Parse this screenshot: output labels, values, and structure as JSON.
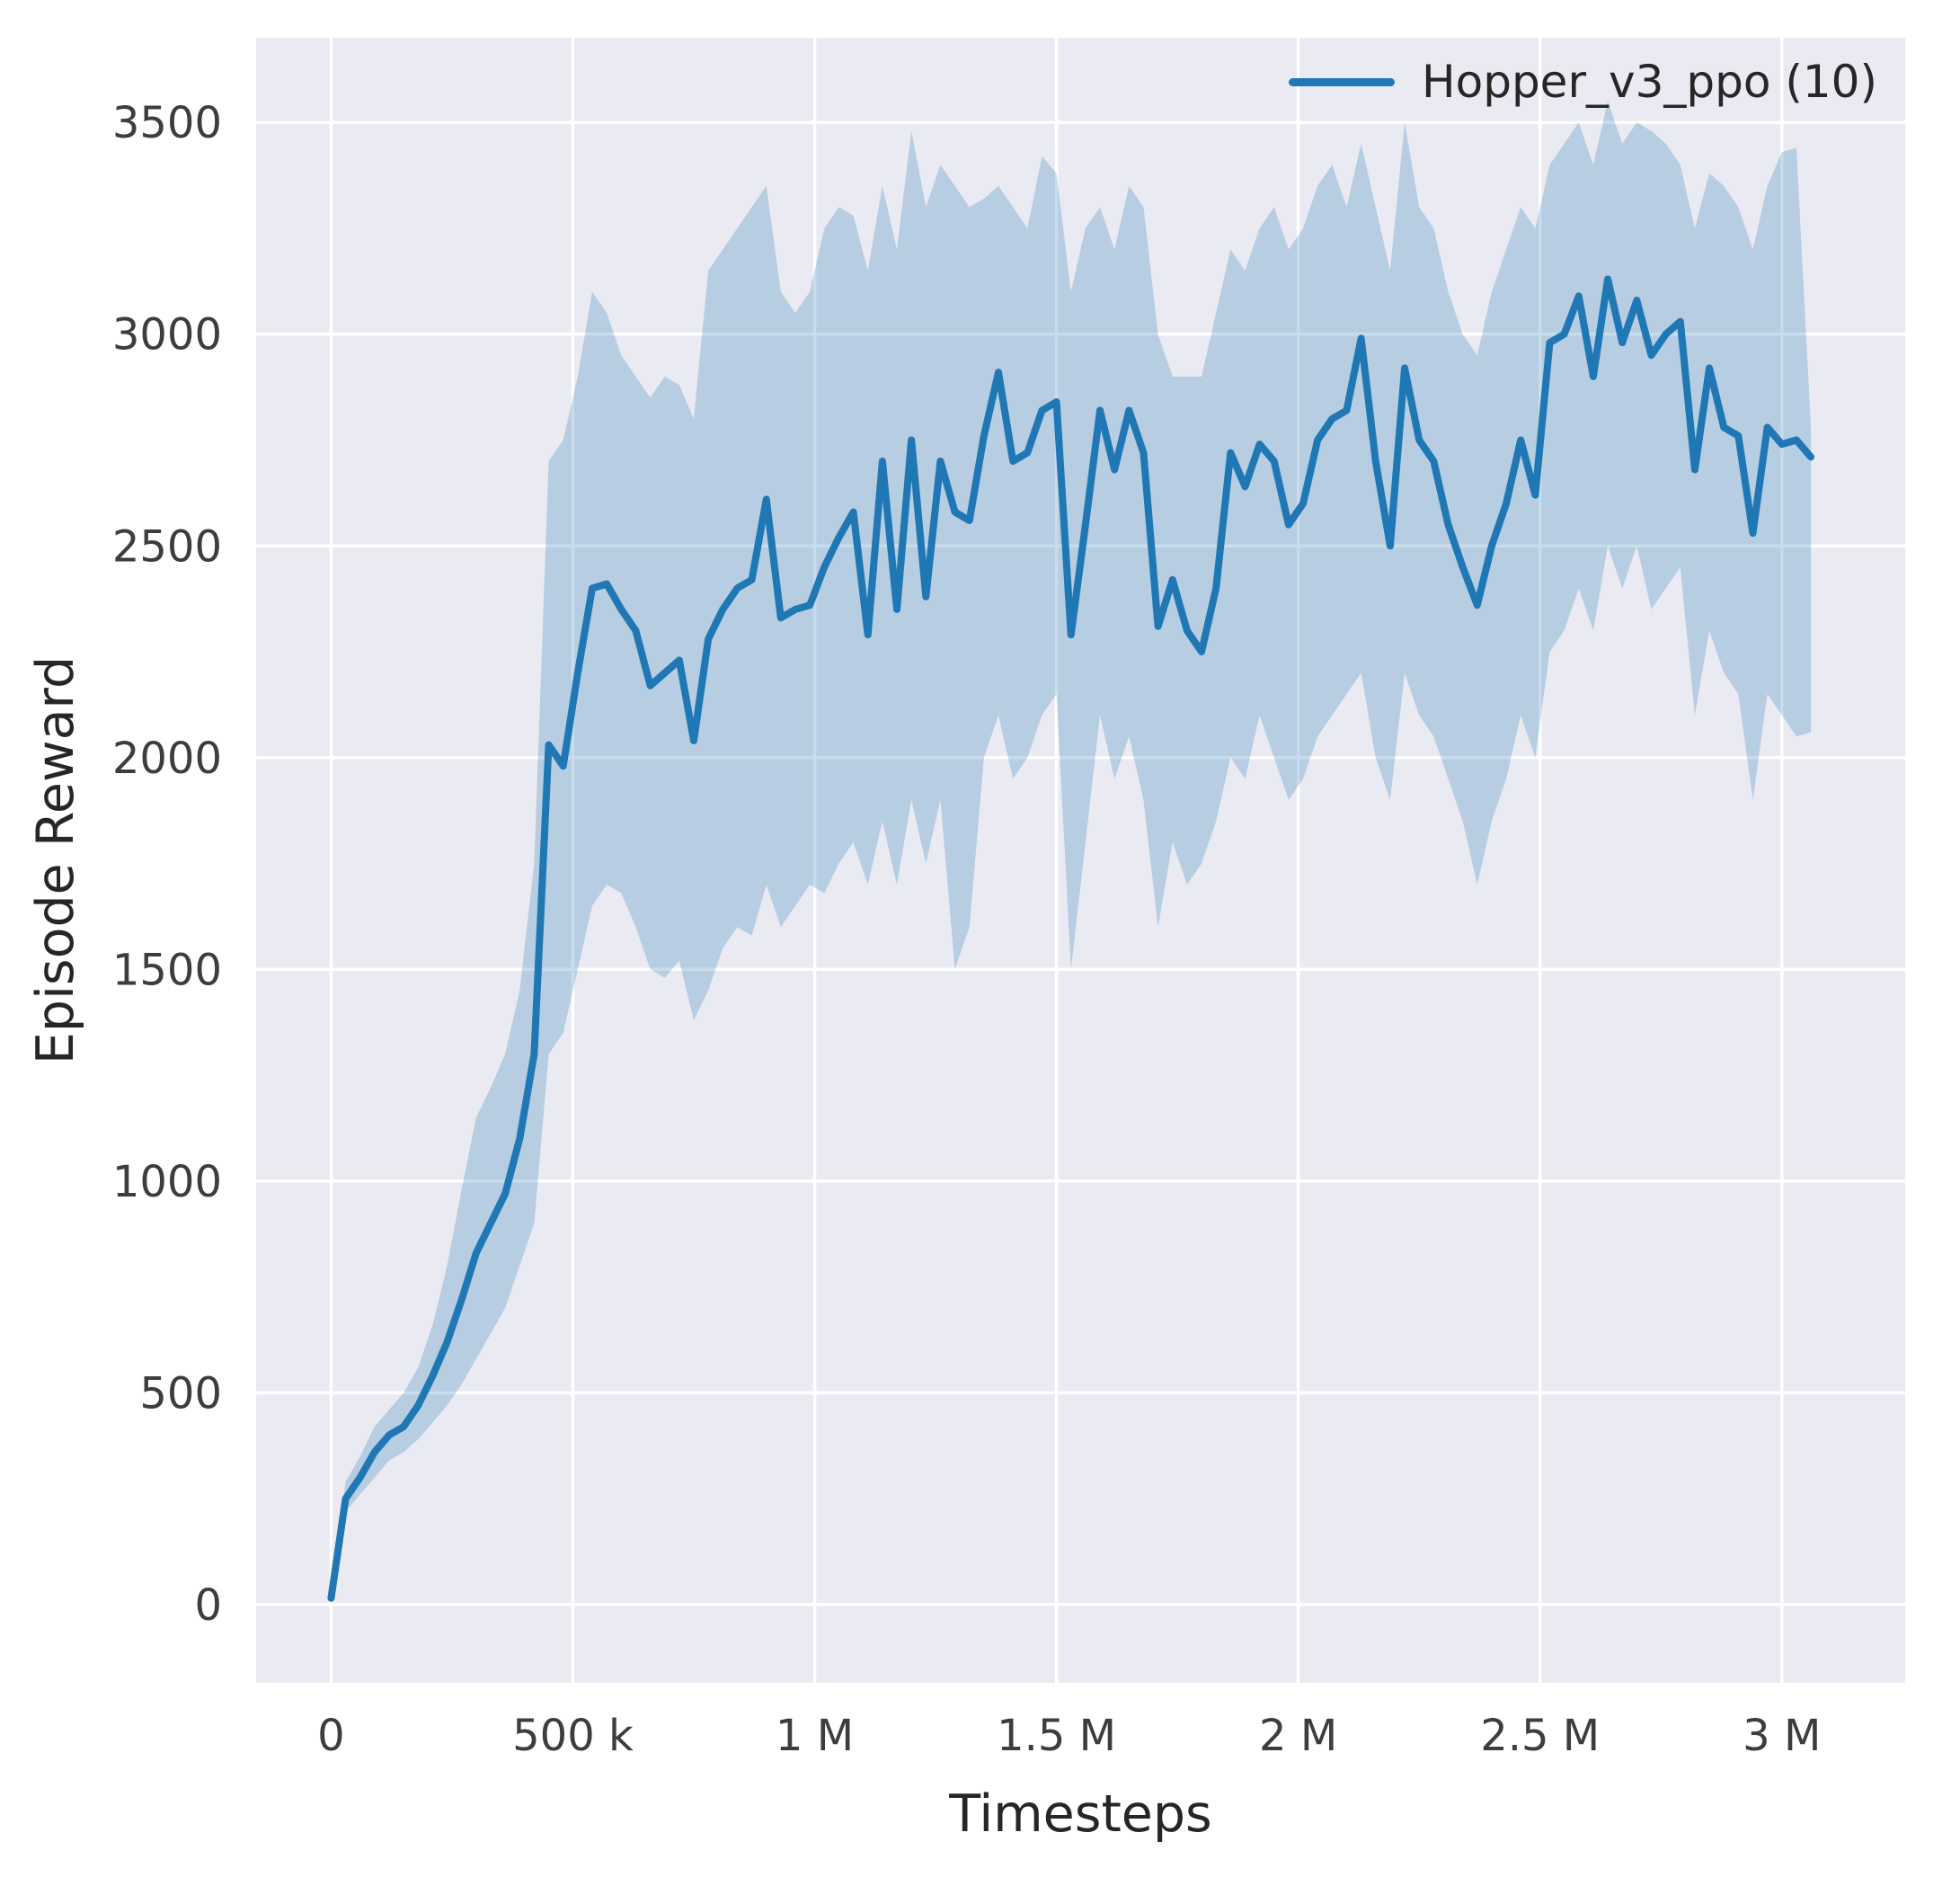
{
  "chart_data": {
    "type": "line",
    "title": "",
    "xlabel": "Timesteps",
    "ylabel": "Episode Reward",
    "xlim": [
      -155000,
      3255000
    ],
    "ylim": [
      -185,
      3700
    ],
    "grid": true,
    "legend_position": "top-right",
    "xticks": {
      "values": [
        0,
        500000,
        1000000,
        1500000,
        2000000,
        2500000,
        3000000
      ],
      "labels": [
        "0",
        "500 k",
        "1 M",
        "1.5 M",
        "2 M",
        "2.5 M",
        "3 M"
      ]
    },
    "yticks": {
      "values": [
        0,
        500,
        1000,
        1500,
        2000,
        2500,
        3000,
        3500
      ],
      "labels": [
        "0",
        "500",
        "1000",
        "1500",
        "2000",
        "2500",
        "3000",
        "3500"
      ]
    },
    "colors": {
      "line": "#1f77b4",
      "band": "rgba(31,119,180,0.25)",
      "plot_bg": "#eaeaf2",
      "grid": "#ffffff",
      "text": "#262626"
    },
    "series": [
      {
        "name": "Hopper_v3_ppo (10)",
        "x": [
          0,
          30000,
          60000,
          90000,
          120000,
          150000,
          180000,
          210000,
          240000,
          270000,
          300000,
          330000,
          360000,
          390000,
          420000,
          450000,
          480000,
          510000,
          540000,
          570000,
          600000,
          630000,
          660000,
          690000,
          720000,
          750000,
          780000,
          810000,
          840000,
          870000,
          900000,
          930000,
          960000,
          990000,
          1020000,
          1050000,
          1080000,
          1110000,
          1140000,
          1170000,
          1200000,
          1230000,
          1260000,
          1290000,
          1320000,
          1350000,
          1380000,
          1410000,
          1440000,
          1470000,
          1500000,
          1530000,
          1560000,
          1590000,
          1620000,
          1650000,
          1680000,
          1710000,
          1740000,
          1770000,
          1800000,
          1830000,
          1860000,
          1890000,
          1920000,
          1950000,
          1980000,
          2010000,
          2040000,
          2070000,
          2100000,
          2130000,
          2160000,
          2190000,
          2220000,
          2250000,
          2280000,
          2310000,
          2340000,
          2370000,
          2400000,
          2430000,
          2460000,
          2490000,
          2520000,
          2550000,
          2580000,
          2610000,
          2640000,
          2670000,
          2700000,
          2730000,
          2760000,
          2790000,
          2820000,
          2850000,
          2880000,
          2910000,
          2940000,
          2970000,
          3000000,
          3030000,
          3060000
        ],
        "mean": [
          15,
          250,
          300,
          360,
          400,
          420,
          470,
          540,
          620,
          720,
          830,
          900,
          970,
          1100,
          1300,
          2030,
          1980,
          2200,
          2400,
          2410,
          2350,
          2300,
          2170,
          2200,
          2230,
          2040,
          2280,
          2350,
          2400,
          2420,
          2610,
          2330,
          2350,
          2360,
          2450,
          2520,
          2580,
          2290,
          2700,
          2350,
          2750,
          2380,
          2700,
          2580,
          2560,
          2760,
          2910,
          2700,
          2720,
          2820,
          2840,
          2290,
          2550,
          2820,
          2680,
          2820,
          2720,
          2310,
          2420,
          2300,
          2250,
          2400,
          2720,
          2640,
          2740,
          2700,
          2550,
          2600,
          2750,
          2800,
          2820,
          2990,
          2700,
          2500,
          2920,
          2750,
          2700,
          2550,
          2450,
          2360,
          2500,
          2600,
          2750,
          2620,
          2980,
          3000,
          3090,
          2900,
          3130,
          2980,
          3080,
          2950,
          3000,
          3030,
          2680,
          2920,
          2780,
          2760,
          2530,
          2780,
          2740,
          2750,
          2710
        ],
        "lower": [
          10,
          220,
          260,
          300,
          340,
          360,
          390,
          430,
          470,
          520,
          580,
          640,
          700,
          800,
          900,
          1300,
          1350,
          1500,
          1650,
          1700,
          1680,
          1600,
          1500,
          1480,
          1520,
          1380,
          1450,
          1550,
          1600,
          1580,
          1700,
          1600,
          1650,
          1700,
          1680,
          1750,
          1800,
          1700,
          1850,
          1700,
          1900,
          1750,
          1900,
          1500,
          1600,
          2000,
          2100,
          1950,
          2000,
          2100,
          2150,
          1500,
          1800,
          2100,
          1950,
          2050,
          1900,
          1600,
          1800,
          1700,
          1750,
          1850,
          2000,
          1950,
          2100,
          2000,
          1900,
          1950,
          2050,
          2100,
          2150,
          2200,
          2000,
          1900,
          2200,
          2100,
          2050,
          1950,
          1850,
          1700,
          1850,
          1950,
          2100,
          2000,
          2250,
          2300,
          2400,
          2300,
          2500,
          2400,
          2500,
          2350,
          2400,
          2450,
          2100,
          2300,
          2200,
          2150,
          1900,
          2150,
          2100,
          2050,
          2060
        ],
        "upper": [
          20,
          290,
          350,
          420,
          460,
          500,
          560,
          660,
          800,
          980,
          1150,
          1220,
          1300,
          1450,
          1750,
          2700,
          2750,
          2900,
          3100,
          3050,
          2950,
          2900,
          2850,
          2900,
          2880,
          2800,
          3150,
          3200,
          3250,
          3300,
          3350,
          3100,
          3050,
          3100,
          3250,
          3300,
          3280,
          3150,
          3350,
          3200,
          3480,
          3300,
          3400,
          3350,
          3300,
          3320,
          3350,
          3300,
          3250,
          3420,
          3380,
          3100,
          3250,
          3300,
          3200,
          3350,
          3300,
          3000,
          2900,
          2900,
          2900,
          3050,
          3200,
          3150,
          3250,
          3300,
          3200,
          3250,
          3350,
          3400,
          3300,
          3450,
          3300,
          3150,
          3500,
          3300,
          3250,
          3100,
          3000,
          2950,
          3100,
          3200,
          3300,
          3250,
          3400,
          3450,
          3500,
          3400,
          3550,
          3450,
          3500,
          3480,
          3450,
          3400,
          3250,
          3380,
          3350,
          3300,
          3200,
          3350,
          3430,
          3440,
          2780
        ]
      }
    ]
  }
}
